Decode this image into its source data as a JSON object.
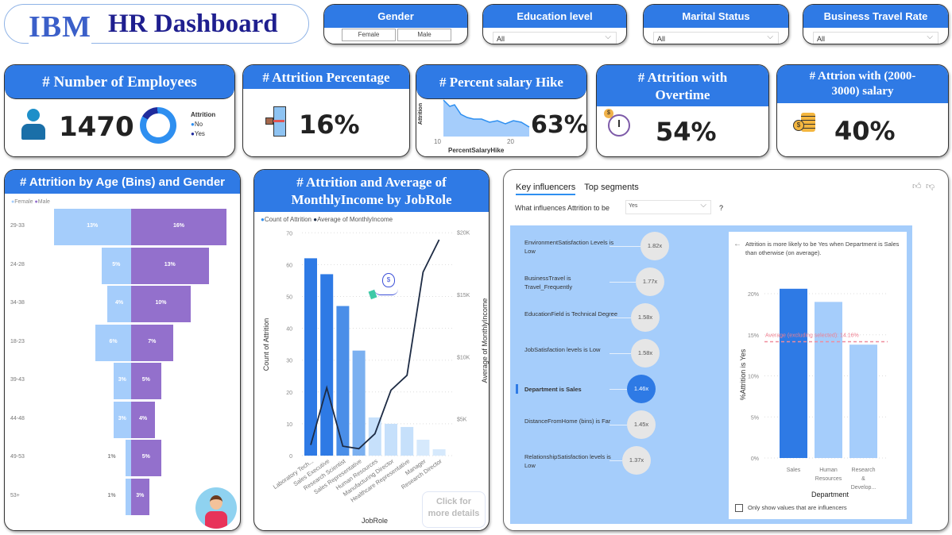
{
  "title": {
    "logo": "IBM",
    "text": "HR Dashboard"
  },
  "slicers": {
    "gender": {
      "label": "Gender",
      "options": [
        "Female",
        "Male"
      ]
    },
    "education": {
      "label": "Education level",
      "value": "All"
    },
    "marital": {
      "label": "Marital Status",
      "value": "All"
    },
    "travel": {
      "label": "Business Travel Rate",
      "value": "All"
    }
  },
  "kpis": {
    "employees": {
      "title": "#  Number of Employees",
      "value": "1470",
      "legend_title": "Attrition",
      "legend": [
        "No",
        "Yes"
      ],
      "attrition_yes_fraction": 0.16
    },
    "attrition": {
      "title": "# Attrition Percentage",
      "value": "16%"
    },
    "hike": {
      "title": "# Percent salary Hike",
      "value": "63%",
      "ylabel": "Attrition",
      "xlabel": "PercentSalaryHike",
      "ticks": [
        "10",
        "20"
      ]
    },
    "overtime": {
      "title": "# Attrition with Overtime",
      "value": "54%"
    },
    "salary": {
      "title": "# Attrion with (2000-3000) salary",
      "value": "40%"
    }
  },
  "age_chart": {
    "title": "# Attrition by Age (Bins) and Gender",
    "legend": [
      "Female",
      "Male"
    ],
    "colors": {
      "female": "#a5cdfb",
      "male": "#9370cc"
    },
    "chart_data": {
      "type": "bar",
      "categories": [
        "29-33",
        "24-28",
        "34-38",
        "18-23",
        "39-43",
        "44-48",
        "49-53",
        "53+"
      ],
      "series": [
        {
          "name": "Female",
          "values": [
            13,
            5,
            4,
            6,
            3,
            3,
            1,
            1
          ]
        },
        {
          "name": "Male",
          "values": [
            16,
            13,
            10,
            7,
            5,
            4,
            5,
            3
          ]
        }
      ]
    },
    "labels_female": [
      "13%",
      "5%",
      "4%",
      "6%",
      "3%",
      "3%",
      "1%",
      "1%"
    ],
    "labels_male": [
      "16%",
      "13%",
      "10%",
      "7%",
      "5%",
      "4%",
      "5%",
      "3%"
    ]
  },
  "jobrole_chart": {
    "title": "# Attrition and Average of MonthlyIncome by JobRole",
    "legend": [
      "Count of Attrition",
      "Average of MonthlyIncome"
    ],
    "ylabel": "Count of Attrition",
    "y2label": "Average of MonthlyIncome",
    "xlabel": "JobRole",
    "yticks": [
      "0",
      "10",
      "20",
      "30",
      "40",
      "50",
      "60",
      "70"
    ],
    "y2ticks": [
      "$5K",
      "$10K",
      "$15K",
      "$20K"
    ],
    "button": "Click for more details",
    "chart_data": {
      "type": "bar",
      "categories": [
        "Laboratory Tech...",
        "Sales Executive",
        "Research Scientist",
        "Sales Representative",
        "Human Resources",
        "Manufacturing Director",
        "Healthcare Representative",
        "Manager",
        "Research Director"
      ],
      "series": [
        {
          "name": "Count of Attrition",
          "values": [
            62,
            57,
            47,
            33,
            12,
            10,
            9,
            5,
            2
          ]
        },
        {
          "name": "Average of MonthlyIncome",
          "values": [
            2900,
            7500,
            2800,
            2600,
            3800,
            7300,
            8500,
            16800,
            19400
          ]
        }
      ],
      "ylim": [
        0,
        70
      ],
      "y2lim": [
        0,
        20000
      ]
    }
  },
  "key_influencers": {
    "tabs": [
      "Key influencers",
      "Top segments"
    ],
    "question": "What influences Attrition to be",
    "selected": "Yes",
    "qmark": "?",
    "items": [
      {
        "label": "EnvironmentSatisfaction Levels is Low",
        "value": "1.82x"
      },
      {
        "label": "BusinessTravel is Travel_Frequently",
        "value": "1.77x"
      },
      {
        "label": "EducationField is Technical Degree",
        "value": "1.58x"
      },
      {
        "label": "JobSatisfaction levels is Low",
        "value": "1.58x"
      },
      {
        "label": "Department is Sales",
        "value": "1.46x"
      },
      {
        "label": "DistanceFromHome (bins) is Far",
        "value": "1.45x"
      },
      {
        "label": "RelationshipSatisfaction levels is Low",
        "value": "1.37x"
      }
    ],
    "detail": {
      "text": "Attrition is more likely to be Yes when Department is Sales than otherwise (on average).",
      "average_label": "Average (excluding selected): 14.16%",
      "ylabel": "%Attrition is Yes",
      "xlabel": "Department",
      "yticks": [
        "0%",
        "5%",
        "10%",
        "15%",
        "20%"
      ],
      "checkbox": "Only show values that are influencers",
      "chart_data": {
        "type": "bar",
        "categories": [
          "Sales",
          "Human Resources",
          "Research & Develop..."
        ],
        "values": [
          20.6,
          19.0,
          13.8
        ],
        "average": 14.16,
        "ylim": [
          0,
          22
        ]
      }
    }
  }
}
